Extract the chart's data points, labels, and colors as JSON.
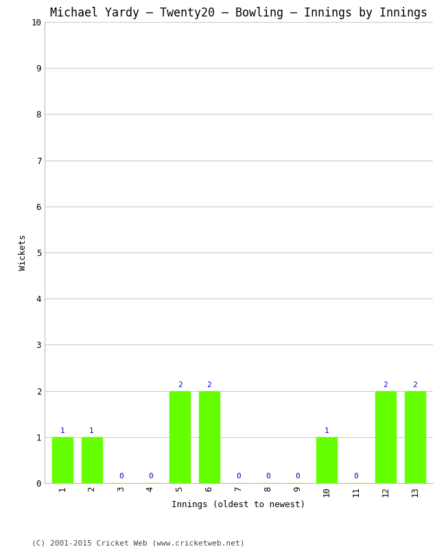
{
  "title": "Michael Yardy – Twenty20 – Bowling – Innings by Innings",
  "xlabel": "Innings (oldest to newest)",
  "ylabel": "Wickets",
  "categories": [
    "1",
    "2",
    "3",
    "4",
    "5",
    "6",
    "7",
    "8",
    "9",
    "10",
    "11",
    "12",
    "13"
  ],
  "values": [
    1,
    1,
    0,
    0,
    2,
    2,
    0,
    0,
    0,
    1,
    0,
    2,
    2
  ],
  "bar_color": "#66ff00",
  "bar_edge_color": "#66ff00",
  "label_color": "#0000cc",
  "ylim": [
    0,
    10
  ],
  "yticks": [
    0,
    1,
    2,
    3,
    4,
    5,
    6,
    7,
    8,
    9,
    10
  ],
  "background_color": "#ffffff",
  "grid_color": "#cccccc",
  "title_fontsize": 12,
  "label_fontsize": 9,
  "tick_fontsize": 9,
  "annotation_fontsize": 8,
  "footer": "(C) 2001-2015 Cricket Web (www.cricketweb.net)",
  "footer_fontsize": 8
}
